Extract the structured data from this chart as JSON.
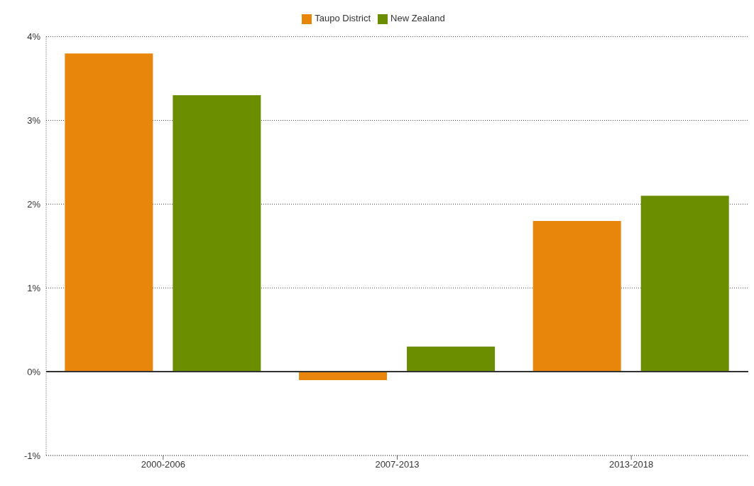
{
  "chart_data": {
    "type": "bar",
    "categories": [
      "2000-2006",
      "2007-2013",
      "2013-2018"
    ],
    "series": [
      {
        "name": "Taupo District",
        "color": "#e8860c",
        "values": [
          3.8,
          -0.1,
          1.8
        ]
      },
      {
        "name": "New Zealand",
        "color": "#6b8e00",
        "values": [
          3.3,
          0.3,
          2.1
        ]
      }
    ],
    "ylim": [
      -1,
      4
    ],
    "yticks": [
      {
        "value": -1,
        "label": "-1%"
      },
      {
        "value": 0,
        "label": "0%"
      },
      {
        "value": 1,
        "label": "1%"
      },
      {
        "value": 2,
        "label": "2%"
      },
      {
        "value": 3,
        "label": "3%"
      },
      {
        "value": 4,
        "label": "4%"
      }
    ],
    "ref_lines": [
      {
        "axis": "y",
        "value": 0,
        "color": "#333333"
      }
    ],
    "grid": "y",
    "legend": "top"
  }
}
